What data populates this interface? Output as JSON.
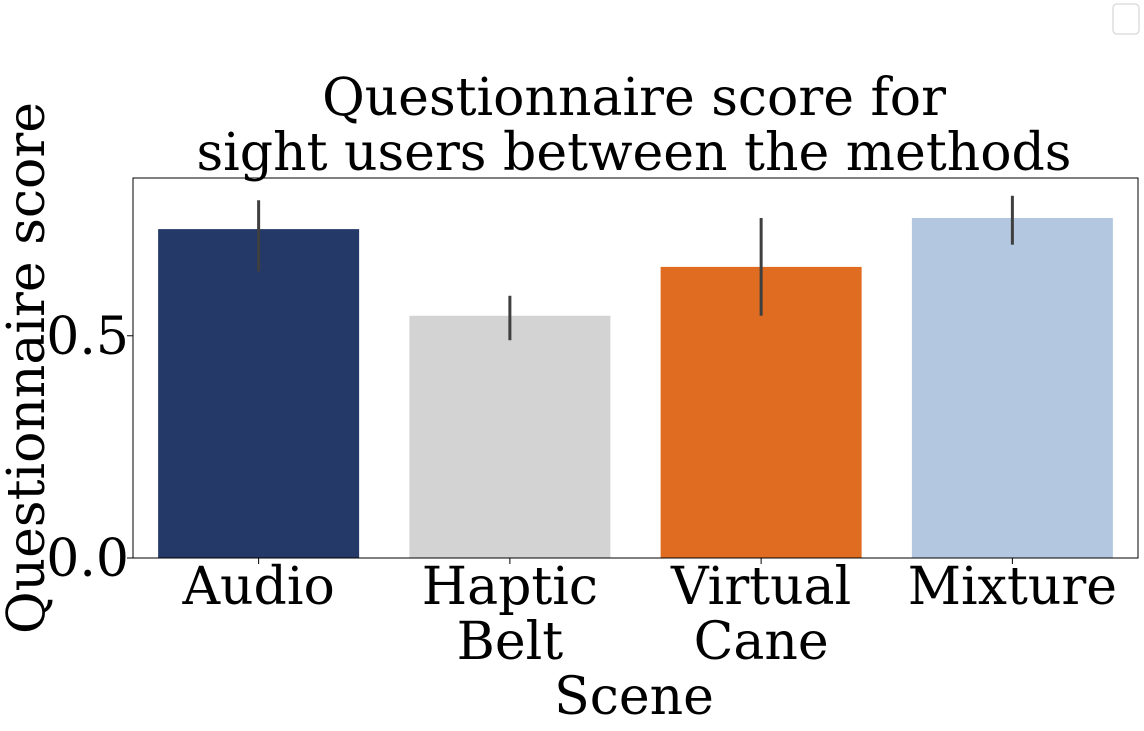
{
  "chart_data": {
    "type": "bar",
    "title": [
      "Questionnaire score for",
      "sight users between the methods"
    ],
    "xlabel": "Scene",
    "ylabel": "Questionnaire score",
    "categories": [
      [
        "Audio"
      ],
      [
        "Haptic",
        "Belt"
      ],
      [
        "Virtual",
        "Cane"
      ],
      [
        "Mixture"
      ]
    ],
    "values": [
      0.74,
      0.545,
      0.655,
      0.765
    ],
    "error_low": [
      0.645,
      0.49,
      0.545,
      0.705
    ],
    "error_high": [
      0.805,
      0.59,
      0.765,
      0.815
    ],
    "colors": [
      "#253969",
      "#d3d3d3",
      "#e06c21",
      "#b3c8e0"
    ],
    "yticks": [
      0.0,
      0.5
    ],
    "ytick_labels": [
      "0.0",
      "0.5"
    ],
    "ylim": [
      0,
      0.855
    ],
    "grid": false,
    "legend": {
      "placement": "top-right",
      "entries": []
    }
  }
}
